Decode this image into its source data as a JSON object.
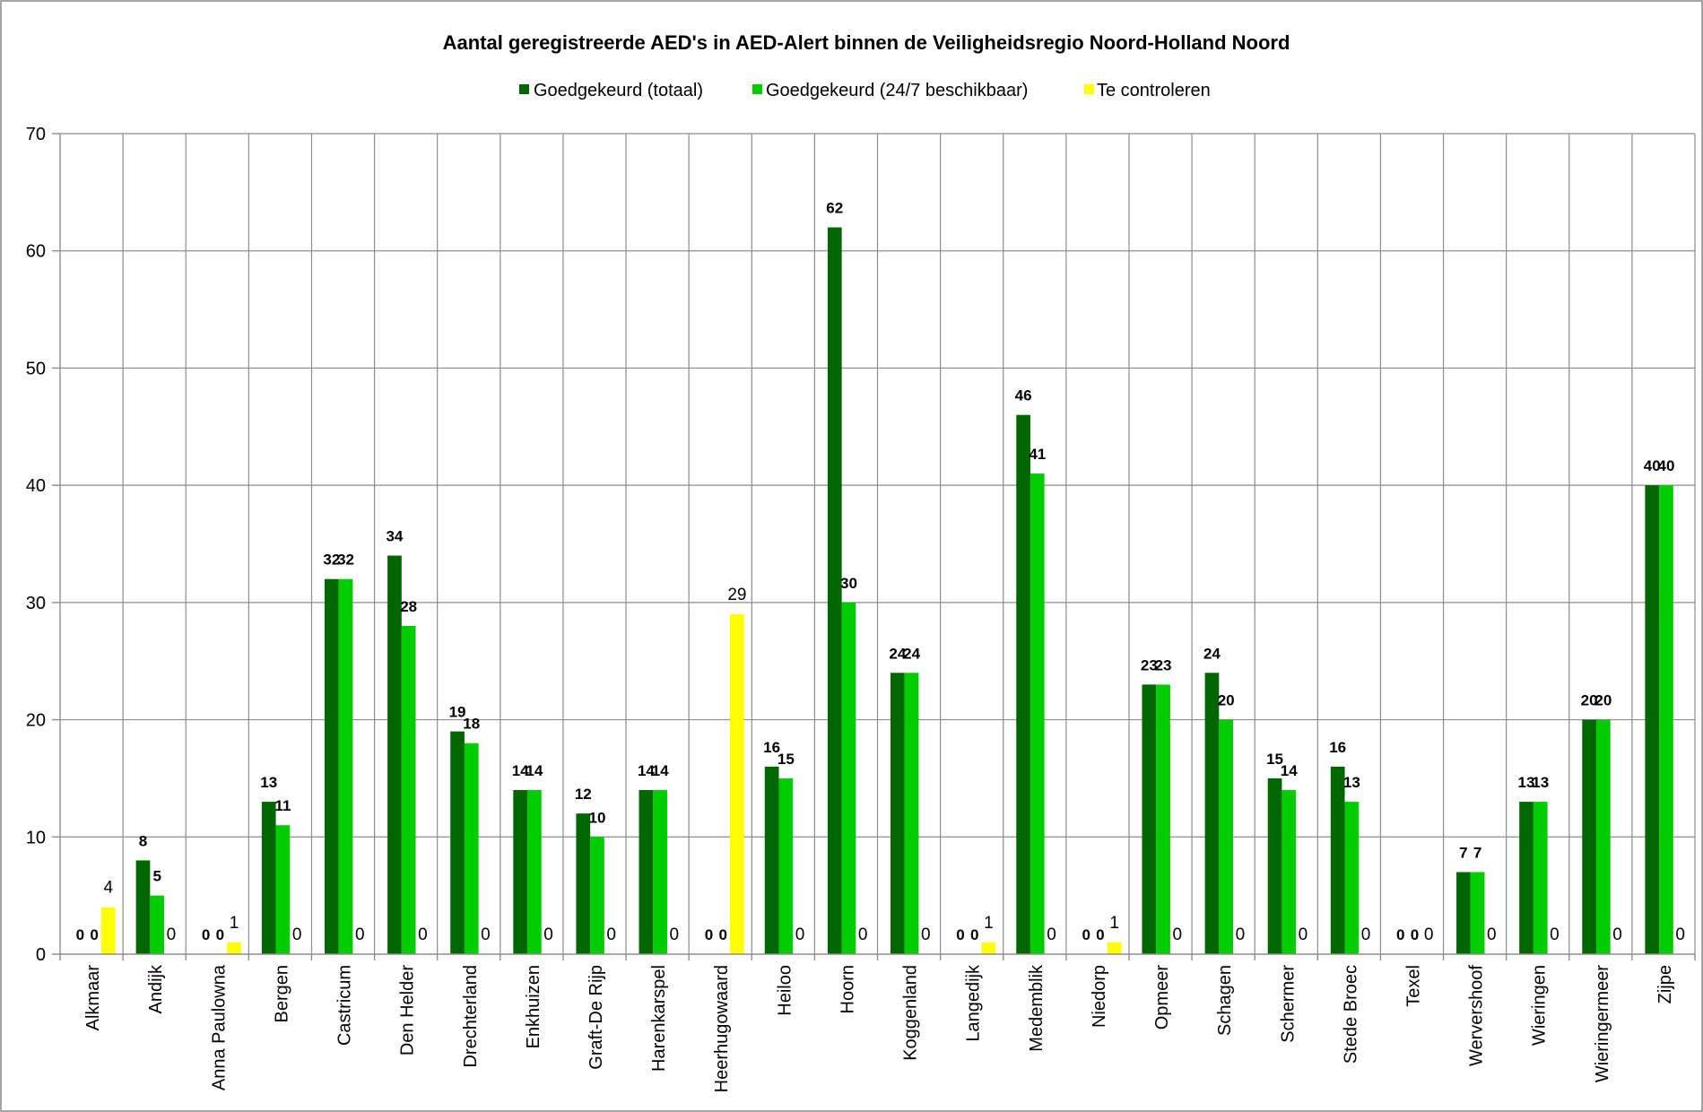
{
  "chart_data": {
    "type": "bar",
    "title": "Aantal geregistreerde AED's in AED-Alert binnen de Veiligheidsregio Noord-Holland Noord",
    "categories": [
      "Alkmaar",
      "Andijk",
      "Anna Paulowna",
      "Bergen",
      "Castricum",
      "Den Helder",
      "Drechterland",
      "Enkhuizen",
      "Graft-De Rijp",
      "Harenkarspel",
      "Heerhugowaard",
      "Heiloo",
      "Hoorn",
      "Koggenland",
      "Langedijk",
      "Medemblik",
      "Niedorp",
      "Opmeer",
      "Schagen",
      "Schermer",
      "Stede Broec",
      "Texel",
      "Wervershoof",
      "Wieringen",
      "Wieringermeer",
      "Zijpe"
    ],
    "series": [
      {
        "name": "Goedgekeurd (totaal)",
        "color": "#006600",
        "values": [
          0,
          8,
          0,
          13,
          32,
          34,
          19,
          14,
          12,
          14,
          0,
          16,
          62,
          24,
          0,
          46,
          0,
          23,
          24,
          15,
          16,
          0,
          7,
          13,
          20,
          40
        ]
      },
      {
        "name": "Goedgekeurd (24/7 beschikbaar)",
        "color": "#00CC00",
        "values": [
          0,
          5,
          0,
          11,
          32,
          28,
          18,
          14,
          10,
          14,
          0,
          15,
          30,
          24,
          0,
          41,
          0,
          23,
          20,
          14,
          13,
          0,
          7,
          13,
          20,
          40
        ]
      },
      {
        "name": "Te controleren",
        "color": "#FFFF00",
        "values": [
          4,
          0,
          1,
          0,
          0,
          0,
          0,
          0,
          0,
          0,
          29,
          0,
          0,
          0,
          1,
          0,
          1,
          0,
          0,
          0,
          0,
          0,
          0,
          0,
          0,
          0
        ]
      }
    ],
    "ylim": [
      0,
      70
    ],
    "yticks": [
      0,
      10,
      20,
      30,
      40,
      50,
      60,
      70
    ],
    "grid": true,
    "legend": "top",
    "data_labels": true
  }
}
